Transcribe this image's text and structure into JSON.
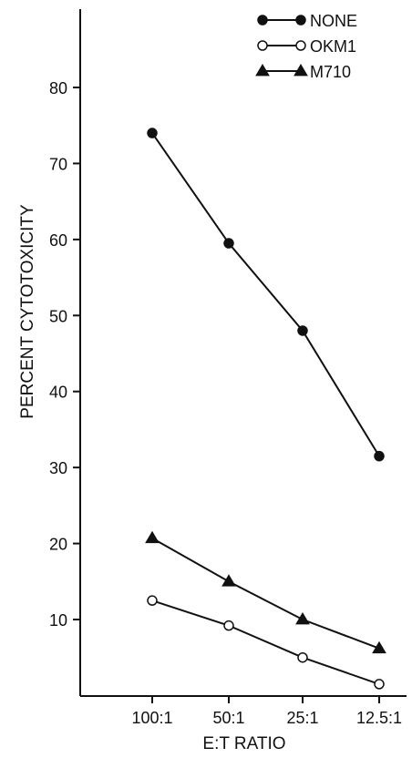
{
  "chart_data": {
    "type": "line",
    "xlabel": "E:T RATIO",
    "ylabel": "PERCENT CYTOTOXICITY",
    "categories": [
      "100:1",
      "50:1",
      "25:1",
      "12.5:1"
    ],
    "ylim": [
      0,
      90
    ],
    "yticks": [
      10,
      20,
      30,
      40,
      50,
      60,
      70,
      80
    ],
    "grid": false,
    "legend_position": "top-right",
    "series": [
      {
        "name": "NONE",
        "marker": "filled-circle",
        "values": [
          74,
          59.5,
          48,
          31.5
        ]
      },
      {
        "name": "OKM1",
        "marker": "open-circle",
        "values": [
          12.5,
          9.2,
          5,
          1.5
        ]
      },
      {
        "name": "M710",
        "marker": "filled-triangle",
        "values": [
          20.7,
          15,
          10,
          6.2
        ]
      }
    ],
    "colors": {
      "line": "#111111",
      "background": "#ffffff"
    }
  }
}
